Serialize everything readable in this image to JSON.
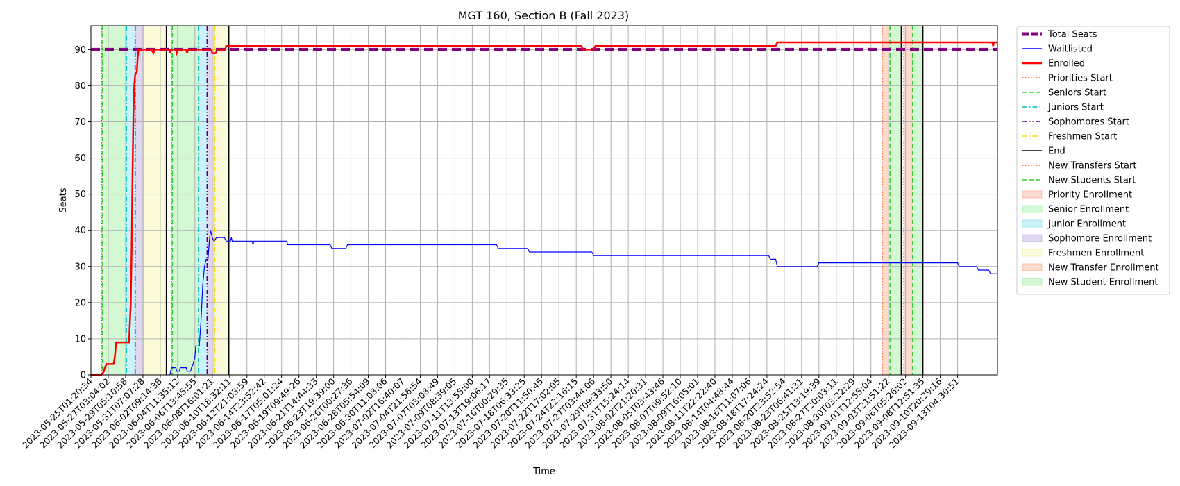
{
  "chart_data": {
    "type": "line",
    "title": "MGT 160, Section B (Fall 2023)",
    "xlabel": "Time",
    "ylabel": "Seats",
    "ylim": [
      0,
      96.6
    ],
    "yticks": [
      0,
      10,
      20,
      30,
      40,
      50,
      60,
      70,
      80,
      90
    ],
    "grid": true,
    "legend_placement": "outside-right",
    "x_categories": [
      "2023-05-25T01:20:34",
      "2023-05-27T03:04:02",
      "2023-05-29T05:10:58",
      "2023-05-31T07:07:28",
      "2023-06-02T09:14:38",
      "2023-06-04T11:35:12",
      "2023-06-06T13:45:55",
      "2023-06-08T16:01:21",
      "2023-06-10T18:32:11",
      "2023-06-12T21:03:59",
      "2023-06-14T23:52:42",
      "2023-06-17T05:01:24",
      "2023-06-19T09:49:26",
      "2023-06-21T14:44:33",
      "2023-06-23T19:39:00",
      "2023-06-26T00:27:36",
      "2023-06-28T05:54:09",
      "2023-06-30T11:08:06",
      "2023-07-02T16:40:07",
      "2023-07-04T21:56:54",
      "2023-07-07T03:08:49",
      "2023-07-09T08:39:05",
      "2023-07-11T13:55:00",
      "2023-07-13T19:06:17",
      "2023-07-16T00:29:35",
      "2023-07-18T06:33:25",
      "2023-07-20T11:50:45",
      "2023-07-22T17:02:05",
      "2023-07-24T22:16:15",
      "2023-07-27T03:44:06",
      "2023-07-29T09:33:50",
      "2023-07-31T15:24:14",
      "2023-08-02T21:20:31",
      "2023-08-05T03:43:46",
      "2023-08-07T09:52:10",
      "2023-08-09T16:05:01",
      "2023-08-11T22:22:40",
      "2023-08-14T04:48:44",
      "2023-08-16T11:07:06",
      "2023-08-18T17:24:24",
      "2023-08-20T23:52:54",
      "2023-08-23T06:41:31",
      "2023-08-25T13:19:39",
      "2023-08-27T20:03:11",
      "2023-08-30T03:22:29",
      "2023-09-01T12:55:04",
      "2023-09-03T21:51:22",
      "2023-09-06T05:26:02",
      "2023-09-08T12:51:35",
      "2023-09-10T20:29:16",
      "2023-09-13T04:30:51"
    ],
    "x_index_max": 52.3,
    "series": [
      {
        "name": "Total Seats",
        "style": "dashed",
        "color": "#800080",
        "points": [
          [
            0,
            90
          ],
          [
            52.3,
            90
          ]
        ]
      },
      {
        "name": "Waitlisted",
        "style": "solid",
        "color": "#0000ff",
        "points": [
          [
            4.55,
            0
          ],
          [
            4.6,
            1
          ],
          [
            4.65,
            2
          ],
          [
            4.9,
            2
          ],
          [
            4.95,
            1
          ],
          [
            5.1,
            1
          ],
          [
            5.15,
            2
          ],
          [
            5.5,
            2
          ],
          [
            5.55,
            1
          ],
          [
            5.75,
            1
          ],
          [
            5.8,
            2
          ],
          [
            5.9,
            3
          ],
          [
            6.0,
            5
          ],
          [
            6.05,
            8
          ],
          [
            6.25,
            8
          ],
          [
            6.35,
            15
          ],
          [
            6.45,
            25
          ],
          [
            6.55,
            30
          ],
          [
            6.65,
            32
          ],
          [
            6.75,
            32
          ],
          [
            6.8,
            35
          ],
          [
            6.85,
            38
          ],
          [
            6.9,
            40
          ],
          [
            7.0,
            38
          ],
          [
            7.1,
            37
          ],
          [
            7.25,
            38
          ],
          [
            7.7,
            38
          ],
          [
            7.8,
            37
          ],
          [
            8.05,
            37
          ],
          [
            8.1,
            38
          ],
          [
            8.15,
            37
          ],
          [
            9.3,
            37
          ],
          [
            9.35,
            36
          ],
          [
            9.4,
            37
          ],
          [
            11.3,
            37
          ],
          [
            11.35,
            36
          ],
          [
            13.8,
            36
          ],
          [
            13.9,
            35
          ],
          [
            14.7,
            35
          ],
          [
            14.8,
            36
          ],
          [
            23.4,
            36
          ],
          [
            23.5,
            35
          ],
          [
            25.2,
            35
          ],
          [
            25.3,
            34
          ],
          [
            28.9,
            34
          ],
          [
            29.0,
            33
          ],
          [
            39.1,
            33
          ],
          [
            39.2,
            32
          ],
          [
            39.5,
            32
          ],
          [
            39.6,
            30
          ],
          [
            41.9,
            30
          ],
          [
            42.0,
            31
          ],
          [
            50.0,
            31
          ],
          [
            50.1,
            30
          ],
          [
            51.1,
            30
          ],
          [
            51.2,
            29
          ],
          [
            51.8,
            29
          ],
          [
            51.9,
            28
          ],
          [
            52.3,
            28
          ]
        ]
      },
      {
        "name": "Enrolled",
        "style": "solid",
        "color": "#ff0000",
        "points": [
          [
            0,
            0
          ],
          [
            0.6,
            0
          ],
          [
            0.75,
            1
          ],
          [
            0.8,
            2
          ],
          [
            0.9,
            3
          ],
          [
            1.3,
            3
          ],
          [
            1.35,
            4
          ],
          [
            1.4,
            6
          ],
          [
            1.45,
            9
          ],
          [
            2.05,
            9
          ],
          [
            2.2,
            9
          ],
          [
            2.3,
            20
          ],
          [
            2.35,
            35
          ],
          [
            2.4,
            55
          ],
          [
            2.45,
            72
          ],
          [
            2.5,
            80
          ],
          [
            2.55,
            83
          ],
          [
            2.65,
            84
          ],
          [
            2.7,
            88
          ],
          [
            2.75,
            90
          ],
          [
            3.5,
            90
          ],
          [
            3.6,
            89
          ],
          [
            3.7,
            90
          ],
          [
            4.5,
            90
          ],
          [
            4.55,
            89
          ],
          [
            4.6,
            90
          ],
          [
            4.9,
            90
          ],
          [
            4.95,
            89
          ],
          [
            5.05,
            90
          ],
          [
            5.5,
            90
          ],
          [
            5.55,
            89
          ],
          [
            5.6,
            90
          ],
          [
            6.95,
            90
          ],
          [
            7.0,
            89
          ],
          [
            7.2,
            89
          ],
          [
            7.3,
            90
          ],
          [
            7.75,
            90
          ],
          [
            7.8,
            91
          ],
          [
            28.3,
            91
          ],
          [
            28.4,
            90
          ],
          [
            29.0,
            90
          ],
          [
            29.1,
            91
          ],
          [
            39.5,
            91
          ],
          [
            39.6,
            92
          ],
          [
            52.0,
            92
          ],
          [
            52.05,
            91
          ],
          [
            52.1,
            92
          ],
          [
            52.3,
            92
          ]
        ]
      }
    ],
    "phase_lines": [
      {
        "name": "Priorities Start",
        "x": 0.62,
        "color": "#ff4500",
        "style": "dotted"
      },
      {
        "name": "Seniors Start",
        "x": 0.66,
        "color": "#32cd32",
        "style": "dashed"
      },
      {
        "name": "Juniors Start",
        "x": 2.05,
        "color": "#00bfbf",
        "style": "dashdot"
      },
      {
        "name": "Sophomores Start",
        "x": 2.55,
        "color": "#4b0082",
        "style": "dashdotdot"
      },
      {
        "name": "Freshmen Start",
        "x": 3.05,
        "color": "#ffd700",
        "style": "dashdot"
      },
      {
        "name": "End",
        "x": 4.35,
        "color": "#000000",
        "style": "solid"
      },
      {
        "name": "Priorities Start",
        "x": 4.65,
        "color": "#ff4500",
        "style": "dotted"
      },
      {
        "name": "Seniors Start",
        "x": 4.7,
        "color": "#32cd32",
        "style": "dashed"
      },
      {
        "name": "Juniors Start",
        "x": 6.2,
        "color": "#00bfbf",
        "style": "dashdot"
      },
      {
        "name": "Sophomores Start",
        "x": 6.7,
        "color": "#4b0082",
        "style": "dashdotdot"
      },
      {
        "name": "Freshmen Start",
        "x": 7.15,
        "color": "#ffd700",
        "style": "dashdot"
      },
      {
        "name": "End",
        "x": 7.95,
        "color": "#000000",
        "style": "solid"
      },
      {
        "name": "New Transfers Start",
        "x": 45.65,
        "color": "#ff4500",
        "style": "dotted"
      },
      {
        "name": "New Students Start",
        "x": 46.1,
        "color": "#32cd32",
        "style": "dashed"
      },
      {
        "name": "End",
        "x": 46.75,
        "color": "#000000",
        "style": "solid"
      },
      {
        "name": "New Transfers Start",
        "x": 46.9,
        "color": "#ff4500",
        "style": "dotted"
      },
      {
        "name": "New Students Start",
        "x": 47.4,
        "color": "#32cd32",
        "style": "dashed"
      },
      {
        "name": "End",
        "x": 48.0,
        "color": "#000000",
        "style": "solid"
      }
    ],
    "phase_bands": [
      {
        "name": "Priority Enrollment",
        "from": 0.62,
        "to": 0.66,
        "color": "#f4a582"
      },
      {
        "name": "Senior Enrollment",
        "from": 0.66,
        "to": 2.05,
        "color": "#90ee90"
      },
      {
        "name": "Junior Enrollment",
        "from": 2.05,
        "to": 2.55,
        "color": "#7fdfef"
      },
      {
        "name": "Sophomore Enrollment",
        "from": 2.55,
        "to": 3.05,
        "color": "#b19cd9"
      },
      {
        "name": "Freshmen Enrollment",
        "from": 3.05,
        "to": 4.35,
        "color": "#f5f5a0"
      },
      {
        "name": "Priority Enrollment",
        "from": 4.65,
        "to": 4.7,
        "color": "#f4a582"
      },
      {
        "name": "Senior Enrollment",
        "from": 4.7,
        "to": 6.2,
        "color": "#90ee90"
      },
      {
        "name": "Junior Enrollment",
        "from": 6.2,
        "to": 6.7,
        "color": "#7fdfef"
      },
      {
        "name": "Sophomore Enrollment",
        "from": 6.7,
        "to": 7.15,
        "color": "#b19cd9"
      },
      {
        "name": "Freshmen Enrollment",
        "from": 7.15,
        "to": 7.95,
        "color": "#f5f5a0"
      },
      {
        "name": "New Transfer Enrollment",
        "from": 45.65,
        "to": 46.1,
        "color": "#f4a582"
      },
      {
        "name": "New Student Enrollment",
        "from": 46.1,
        "to": 46.75,
        "color": "#90ee90"
      },
      {
        "name": "New Transfer Enrollment",
        "from": 46.9,
        "to": 47.4,
        "color": "#f4a582"
      },
      {
        "name": "New Student Enrollment",
        "from": 47.4,
        "to": 48.0,
        "color": "#90ee90"
      }
    ],
    "legend": [
      {
        "label": "Total Seats",
        "kind": "line",
        "color": "#800080",
        "style": "thickdash"
      },
      {
        "label": "Waitlisted",
        "kind": "line",
        "color": "#0000ff",
        "style": "solid"
      },
      {
        "label": "Enrolled",
        "kind": "line",
        "color": "#ff0000",
        "style": "thick"
      },
      {
        "label": "Priorities Start",
        "kind": "line",
        "color": "#ff4500",
        "style": "dotted"
      },
      {
        "label": "Seniors Start",
        "kind": "line",
        "color": "#32cd32",
        "style": "dashed"
      },
      {
        "label": "Juniors Start",
        "kind": "line",
        "color": "#00bfbf",
        "style": "dashdot"
      },
      {
        "label": "Sophomores Start",
        "kind": "line",
        "color": "#4b0082",
        "style": "dashdotdot"
      },
      {
        "label": "Freshmen Start",
        "kind": "line",
        "color": "#ffd700",
        "style": "dashdot"
      },
      {
        "label": "End",
        "kind": "line",
        "color": "#000000",
        "style": "solid"
      },
      {
        "label": "New Transfers Start",
        "kind": "line",
        "color": "#ff4500",
        "style": "dotted"
      },
      {
        "label": "New Students Start",
        "kind": "line",
        "color": "#32cd32",
        "style": "dashed"
      },
      {
        "label": "Priority Enrollment",
        "kind": "patch",
        "color": "#f4a582"
      },
      {
        "label": "Senior Enrollment",
        "kind": "patch",
        "color": "#90ee90"
      },
      {
        "label": "Junior Enrollment",
        "kind": "patch",
        "color": "#7fdfef"
      },
      {
        "label": "Sophomore Enrollment",
        "kind": "patch",
        "color": "#b19cd9"
      },
      {
        "label": "Freshmen Enrollment",
        "kind": "patch",
        "color": "#f5f5a0"
      },
      {
        "label": "New Transfer Enrollment",
        "kind": "patch",
        "color": "#f4a582"
      },
      {
        "label": "New Student Enrollment",
        "kind": "patch",
        "color": "#90ee90"
      }
    ]
  }
}
